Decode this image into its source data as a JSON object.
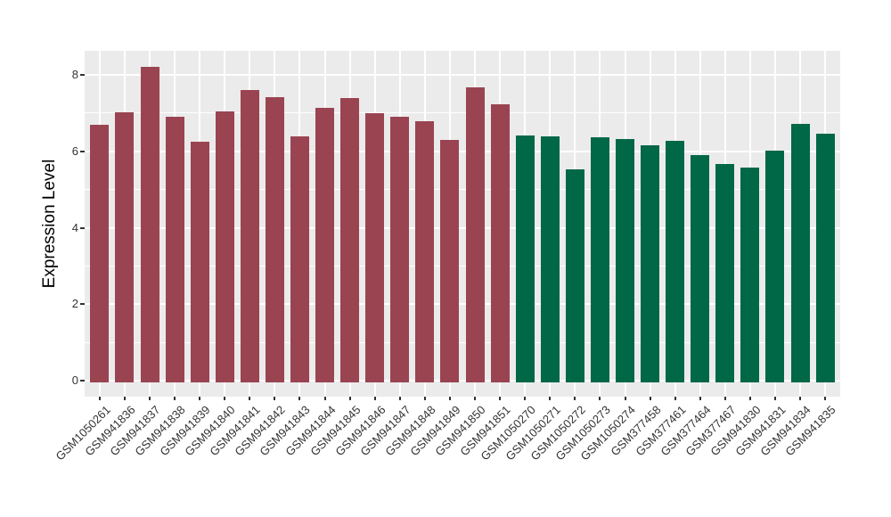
{
  "figure": {
    "background": "#FFFFFF",
    "panel_background": "#EBEBEB",
    "grid_color": "#FFFFFF",
    "axis_text_color": "#333333",
    "axis_title_color": "#000000"
  },
  "chart_data": {
    "type": "bar",
    "title": "",
    "xlabel": "",
    "ylabel": "Expression Level",
    "ylim": [
      0,
      8.63
    ],
    "yticks": [
      0,
      2,
      4,
      6,
      8
    ],
    "minor_yticks": [
      1,
      3,
      5,
      7
    ],
    "grid": "white major horizontal at yticks, white minor horizontal at odd values, white vertical major at each category center, gray panel",
    "legend": "none",
    "x_label_angle": -45,
    "categories": [
      "GSM1050261",
      "GSM941836",
      "GSM941837",
      "GSM941838",
      "GSM941839",
      "GSM941840",
      "GSM941841",
      "GSM941842",
      "GSM941843",
      "GSM941844",
      "GSM941845",
      "GSM941846",
      "GSM941847",
      "GSM941848",
      "GSM941849",
      "GSM941850",
      "GSM941851",
      "GSM1050270",
      "GSM1050271",
      "GSM1050272",
      "GSM1050273",
      "GSM1050274",
      "GSM377458",
      "GSM377461",
      "GSM377464",
      "GSM377467",
      "GSM941830",
      "GSM941831",
      "GSM941834",
      "GSM941835"
    ],
    "values": [
      6.69,
      7.03,
      8.22,
      6.91,
      6.26,
      7.04,
      7.6,
      7.42,
      6.38,
      7.13,
      7.4,
      7.0,
      6.9,
      6.78,
      6.3,
      7.68,
      7.22,
      6.42,
      6.38,
      5.53,
      6.36,
      6.32,
      6.15,
      6.28,
      5.91,
      5.66,
      5.57,
      6.02,
      6.71,
      6.47
    ],
    "groups": [
      "maroon",
      "maroon",
      "maroon",
      "maroon",
      "maroon",
      "maroon",
      "maroon",
      "maroon",
      "maroon",
      "maroon",
      "maroon",
      "maroon",
      "maroon",
      "maroon",
      "maroon",
      "maroon",
      "maroon",
      "green",
      "green",
      "green",
      "green",
      "green",
      "green",
      "green",
      "green",
      "green",
      "green",
      "green",
      "green",
      "green"
    ],
    "group_colors": {
      "maroon": "#9A4451",
      "green": "#006747"
    }
  }
}
